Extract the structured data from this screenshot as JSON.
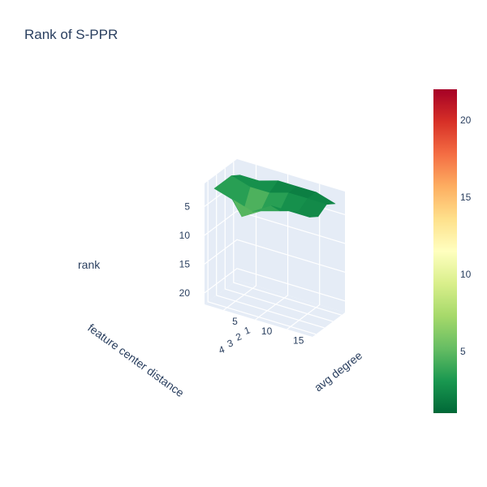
{
  "title": "Rank of S-PPR",
  "chart_data": {
    "type": "surface",
    "title": "Rank of S-PPR",
    "x_axis": {
      "label": "feature center distance",
      "values": [
        1,
        2,
        3,
        4
      ],
      "ticks": [
        "1",
        "2",
        "3",
        "4"
      ],
      "range": [
        0.6,
        4.4
      ]
    },
    "y_axis": {
      "label": "avg degree",
      "values": [
        3,
        6,
        9,
        12,
        15,
        18
      ],
      "ticks": [
        "5",
        "10",
        "15"
      ],
      "range": [
        2,
        19
      ]
    },
    "z_axis": {
      "label": "rank",
      "ticks": [
        "5",
        "10",
        "20"
      ],
      "tick_values": [
        5,
        10,
        20
      ],
      "range": [
        1,
        22
      ],
      "reversed": true,
      "extra_tick_label": "15"
    },
    "z_values": [
      [
        3,
        3,
        2,
        2,
        2,
        3
      ],
      [
        2,
        3,
        3,
        2,
        2,
        2
      ],
      [
        2,
        7,
        5,
        4,
        3,
        3
      ],
      [
        2,
        3,
        4,
        2,
        2,
        2
      ]
    ],
    "note_rows_are_feature_center_distance_cols_are_avg_degree": "",
    "colorscale": "RdYlGn-reversed",
    "colorbar": {
      "ticks": [
        "5",
        "10",
        "15",
        "20"
      ],
      "tick_values": [
        5,
        10,
        15,
        20
      ],
      "range": [
        1,
        22
      ]
    },
    "background_color": "#e5ecf6",
    "grid_color": "#ffffff"
  }
}
